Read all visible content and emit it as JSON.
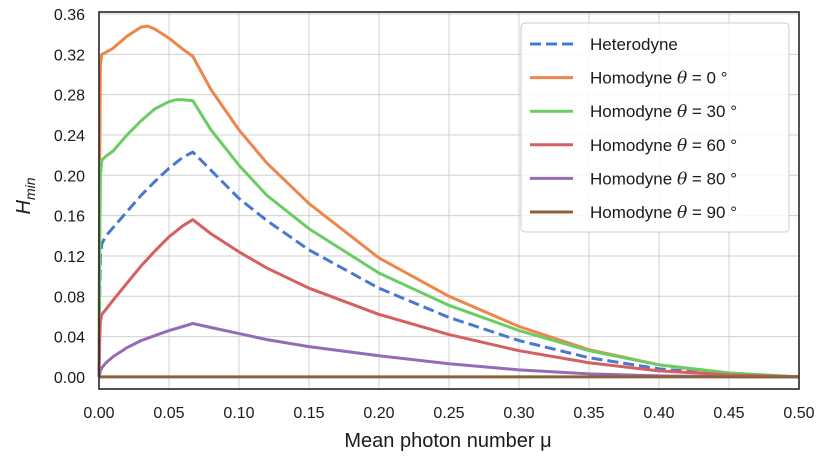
{
  "chart_data": {
    "type": "line",
    "xlabel": "Mean photon number μ",
    "ylabel": "H",
    "ylabel_sub": "min",
    "xlim": [
      0.0,
      0.5
    ],
    "ylim": [
      -0.012,
      0.362
    ],
    "xticks": [
      0.0,
      0.05,
      0.1,
      0.15,
      0.2,
      0.25,
      0.3,
      0.35,
      0.4,
      0.45,
      0.5
    ],
    "xtick_labels": [
      "0.00",
      "0.05",
      "0.10",
      "0.15",
      "0.20",
      "0.25",
      "0.30",
      "0.35",
      "0.40",
      "0.45",
      "0.50"
    ],
    "yticks": [
      0.0,
      0.04,
      0.08,
      0.12,
      0.16,
      0.2,
      0.24,
      0.28,
      0.32,
      0.36
    ],
    "ytick_labels": [
      "0.00",
      "0.04",
      "0.08",
      "0.12",
      "0.16",
      "0.20",
      "0.24",
      "0.28",
      "0.32",
      "0.36"
    ],
    "grid": true,
    "legend_position": "top-right",
    "series": [
      {
        "name": "Heterodyne",
        "legend_prefix": "Heterodyne",
        "legend_theta": "",
        "legend_suffix": "",
        "color": "#4878cf",
        "dash": "dashed",
        "x": [
          0.0,
          0.0005,
          0.001,
          0.002,
          0.005,
          0.01,
          0.02,
          0.03,
          0.04,
          0.05,
          0.06,
          0.067,
          0.07,
          0.08,
          0.09,
          0.1,
          0.12,
          0.15,
          0.2,
          0.25,
          0.3,
          0.35,
          0.4,
          0.45,
          0.5
        ],
        "y": [
          0.0,
          0.08,
          0.12,
          0.132,
          0.14,
          0.148,
          0.164,
          0.18,
          0.194,
          0.207,
          0.218,
          0.223,
          0.219,
          0.205,
          0.191,
          0.177,
          0.155,
          0.126,
          0.088,
          0.059,
          0.036,
          0.019,
          0.008,
          0.002,
          0.0
        ]
      },
      {
        "name": "Homodyne θ = 0°",
        "legend_prefix": "Homodyne ",
        "legend_theta": "θ",
        "legend_suffix": " = 0 °",
        "color": "#ee854a",
        "dash": "solid",
        "x": [
          0.0,
          0.0005,
          0.001,
          0.002,
          0.005,
          0.01,
          0.02,
          0.03,
          0.035,
          0.04,
          0.05,
          0.06,
          0.067,
          0.08,
          0.1,
          0.12,
          0.15,
          0.2,
          0.25,
          0.3,
          0.35,
          0.4,
          0.45,
          0.5
        ],
        "y": [
          0.0,
          0.2,
          0.31,
          0.32,
          0.322,
          0.326,
          0.338,
          0.347,
          0.348,
          0.345,
          0.336,
          0.325,
          0.318,
          0.285,
          0.245,
          0.212,
          0.172,
          0.118,
          0.08,
          0.05,
          0.027,
          0.012,
          0.003,
          0.0
        ]
      },
      {
        "name": "Homodyne θ = 30°",
        "legend_prefix": "Homodyne ",
        "legend_theta": "θ",
        "legend_suffix": " = 30 °",
        "color": "#6acc64",
        "dash": "solid",
        "x": [
          0.0,
          0.0005,
          0.001,
          0.002,
          0.005,
          0.01,
          0.02,
          0.03,
          0.04,
          0.05,
          0.055,
          0.06,
          0.067,
          0.08,
          0.1,
          0.12,
          0.15,
          0.2,
          0.25,
          0.3,
          0.35,
          0.4,
          0.45,
          0.5
        ],
        "y": [
          0.0,
          0.12,
          0.2,
          0.215,
          0.219,
          0.224,
          0.24,
          0.254,
          0.266,
          0.273,
          0.275,
          0.275,
          0.274,
          0.245,
          0.21,
          0.18,
          0.147,
          0.103,
          0.071,
          0.046,
          0.026,
          0.012,
          0.004,
          0.0
        ]
      },
      {
        "name": "Homodyne θ = 60°",
        "legend_prefix": "Homodyne ",
        "legend_theta": "θ",
        "legend_suffix": " = 60 °",
        "color": "#d65f5f",
        "dash": "solid",
        "x": [
          0.0,
          0.0005,
          0.001,
          0.002,
          0.005,
          0.01,
          0.02,
          0.03,
          0.04,
          0.05,
          0.06,
          0.067,
          0.08,
          0.1,
          0.12,
          0.15,
          0.2,
          0.25,
          0.3,
          0.35,
          0.4,
          0.45,
          0.5
        ],
        "y": [
          0.0,
          0.035,
          0.055,
          0.062,
          0.067,
          0.076,
          0.093,
          0.11,
          0.125,
          0.139,
          0.15,
          0.156,
          0.142,
          0.124,
          0.108,
          0.088,
          0.062,
          0.042,
          0.026,
          0.014,
          0.006,
          0.002,
          0.0
        ]
      },
      {
        "name": "Homodyne θ = 80°",
        "legend_prefix": "Homodyne ",
        "legend_theta": "θ",
        "legend_suffix": " = 80 °",
        "color": "#956cb4",
        "dash": "solid",
        "x": [
          0.0,
          0.001,
          0.002,
          0.005,
          0.01,
          0.02,
          0.03,
          0.04,
          0.05,
          0.06,
          0.067,
          0.08,
          0.1,
          0.12,
          0.15,
          0.2,
          0.25,
          0.3,
          0.35,
          0.4,
          0.45,
          0.5
        ],
        "y": [
          0.0,
          0.006,
          0.009,
          0.014,
          0.02,
          0.029,
          0.036,
          0.041,
          0.046,
          0.05,
          0.053,
          0.049,
          0.043,
          0.037,
          0.03,
          0.021,
          0.013,
          0.007,
          0.003,
          0.001,
          0.0002,
          0.0
        ]
      },
      {
        "name": "Homodyne θ = 90°",
        "legend_prefix": "Homodyne ",
        "legend_theta": "θ",
        "legend_suffix": " = 90 °",
        "color": "#8c613c",
        "dash": "solid",
        "x": [
          0.0,
          0.5
        ],
        "y": [
          0.0,
          0.0
        ]
      }
    ]
  }
}
